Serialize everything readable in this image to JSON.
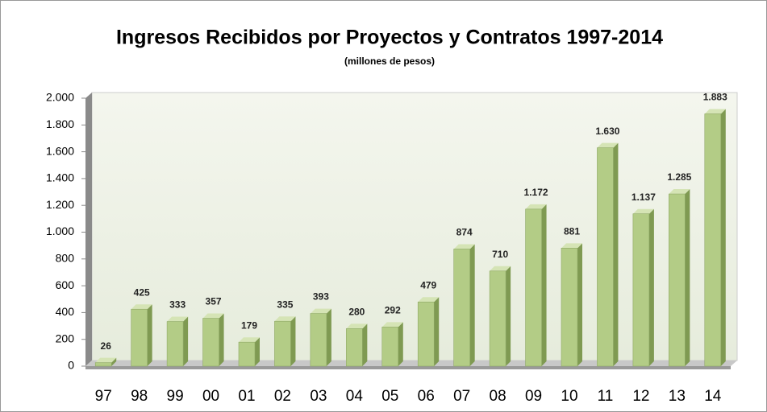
{
  "chart_data": {
    "type": "bar",
    "title": "Ingresos Recibidos por Proyectos y Contratos 1997-2014",
    "subtitle": "(millones de pesos)",
    "categories": [
      "97",
      "98",
      "99",
      "00",
      "01",
      "02",
      "03",
      "04",
      "05",
      "06",
      "07",
      "08",
      "09",
      "10",
      "11",
      "12",
      "13",
      "14"
    ],
    "values": [
      26,
      425,
      333,
      357,
      179,
      335,
      393,
      280,
      292,
      479,
      874,
      710,
      1172,
      881,
      1630,
      1137,
      1285,
      1883
    ],
    "value_labels": [
      "26",
      "425",
      "333",
      "357",
      "179",
      "335",
      "393",
      "280",
      "292",
      "479",
      "874",
      "710",
      "1.172",
      "881",
      "1.630",
      "1.137",
      "1.285",
      "1.883"
    ],
    "color": "#b3cc86",
    "ylim": [
      0,
      2000
    ],
    "yticks": [
      0,
      200,
      400,
      600,
      800,
      {
        "value": 1000,
        "label": "1.000"
      },
      {
        "value": 1200,
        "label": "1.200"
      },
      {
        "value": 1400,
        "label": "1.400"
      },
      {
        "value": 1600,
        "label": "1.600"
      },
      {
        "value": 1800,
        "label": "1.800"
      },
      {
        "value": 2000,
        "label": "2.000"
      }
    ],
    "grid": false
  }
}
